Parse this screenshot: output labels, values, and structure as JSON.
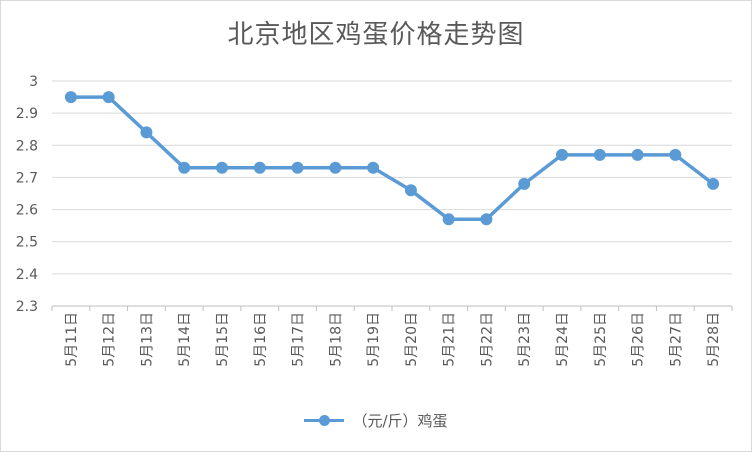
{
  "chart_data": {
    "type": "line",
    "title": "北京地区鸡蛋价格走势图",
    "categories": [
      "5月11日",
      "5月12日",
      "5月13日",
      "5月14日",
      "5月15日",
      "5月16日",
      "5月17日",
      "5月18日",
      "5月19日",
      "5月20日",
      "5月21日",
      "5月22日",
      "5月23日",
      "5月24日",
      "5月25日",
      "5月26日",
      "5月27日",
      "5月28日"
    ],
    "series": [
      {
        "name": "（元/斤）鸡蛋",
        "color": "#5b9bd5",
        "values": [
          2.95,
          2.95,
          2.84,
          2.73,
          2.73,
          2.73,
          2.73,
          2.73,
          2.73,
          2.66,
          2.57,
          2.57,
          2.68,
          2.77,
          2.77,
          2.77,
          2.77,
          2.68
        ]
      }
    ],
    "yticks": [
      "2.3",
      "2.4",
      "2.5",
      "2.6",
      "2.7",
      "2.8",
      "2.9",
      "3"
    ],
    "ylim": [
      2.3,
      3.0
    ],
    "xlabel": "",
    "ylabel": "",
    "grid": true,
    "legend_position": "bottom"
  }
}
